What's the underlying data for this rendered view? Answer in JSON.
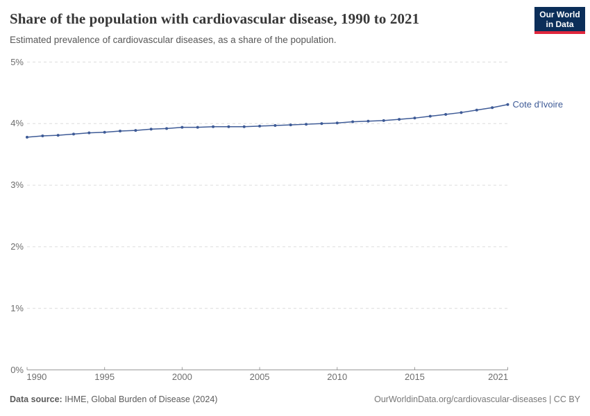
{
  "header": {
    "title": "Share of the population with cardiovascular disease, 1990 to 2021",
    "subtitle": "Estimated prevalence of cardiovascular diseases, as a share of the population.",
    "logo": {
      "line1": "Our World",
      "line2": "in Data",
      "bg_color": "#0b2e59",
      "accent_color": "#e0263d"
    }
  },
  "chart_data": {
    "type": "line",
    "title": "Share of the population with cardiovascular disease, 1990 to 2021",
    "subtitle": "Estimated prevalence of cardiovascular diseases, as a share of the population.",
    "x": [
      1990,
      1991,
      1992,
      1993,
      1994,
      1995,
      1996,
      1997,
      1998,
      1999,
      2000,
      2001,
      2002,
      2003,
      2004,
      2005,
      2006,
      2007,
      2008,
      2009,
      2010,
      2011,
      2012,
      2013,
      2014,
      2015,
      2016,
      2017,
      2018,
      2019,
      2020,
      2021
    ],
    "series": [
      {
        "name": "Cote d'Ivoire",
        "color": "#3d5a96",
        "values": [
          3.78,
          3.8,
          3.81,
          3.83,
          3.85,
          3.86,
          3.88,
          3.89,
          3.91,
          3.92,
          3.94,
          3.94,
          3.95,
          3.95,
          3.95,
          3.96,
          3.97,
          3.98,
          3.99,
          4.0,
          4.01,
          4.03,
          4.04,
          4.05,
          4.07,
          4.09,
          4.12,
          4.15,
          4.18,
          4.22,
          4.26,
          4.31
        ]
      }
    ],
    "xlabel": "",
    "ylabel": "",
    "xlim": [
      1990,
      2021
    ],
    "ylim": [
      0,
      5
    ],
    "x_ticks": {
      "labels": [
        "1990",
        "1995",
        "2000",
        "2005",
        "2010",
        "2015",
        "2021"
      ],
      "values": [
        1990,
        1995,
        2000,
        2005,
        2010,
        2015,
        2021
      ]
    },
    "y_ticks": {
      "labels": [
        "0%",
        "1%",
        "2%",
        "3%",
        "4%",
        "5%"
      ],
      "values": [
        0,
        1,
        2,
        3,
        4,
        5
      ]
    },
    "grid": "horizontal-dashed",
    "legend_position": "end-of-line-label",
    "grid_color": "#dcdcdc",
    "axis_color": "#9a9a9a"
  },
  "footer": {
    "source_label": "Data source:",
    "source_text": " IHME, Global Burden of Disease (2024)",
    "attribution": "OurWorldinData.org/cardiovascular-diseases | CC BY"
  }
}
